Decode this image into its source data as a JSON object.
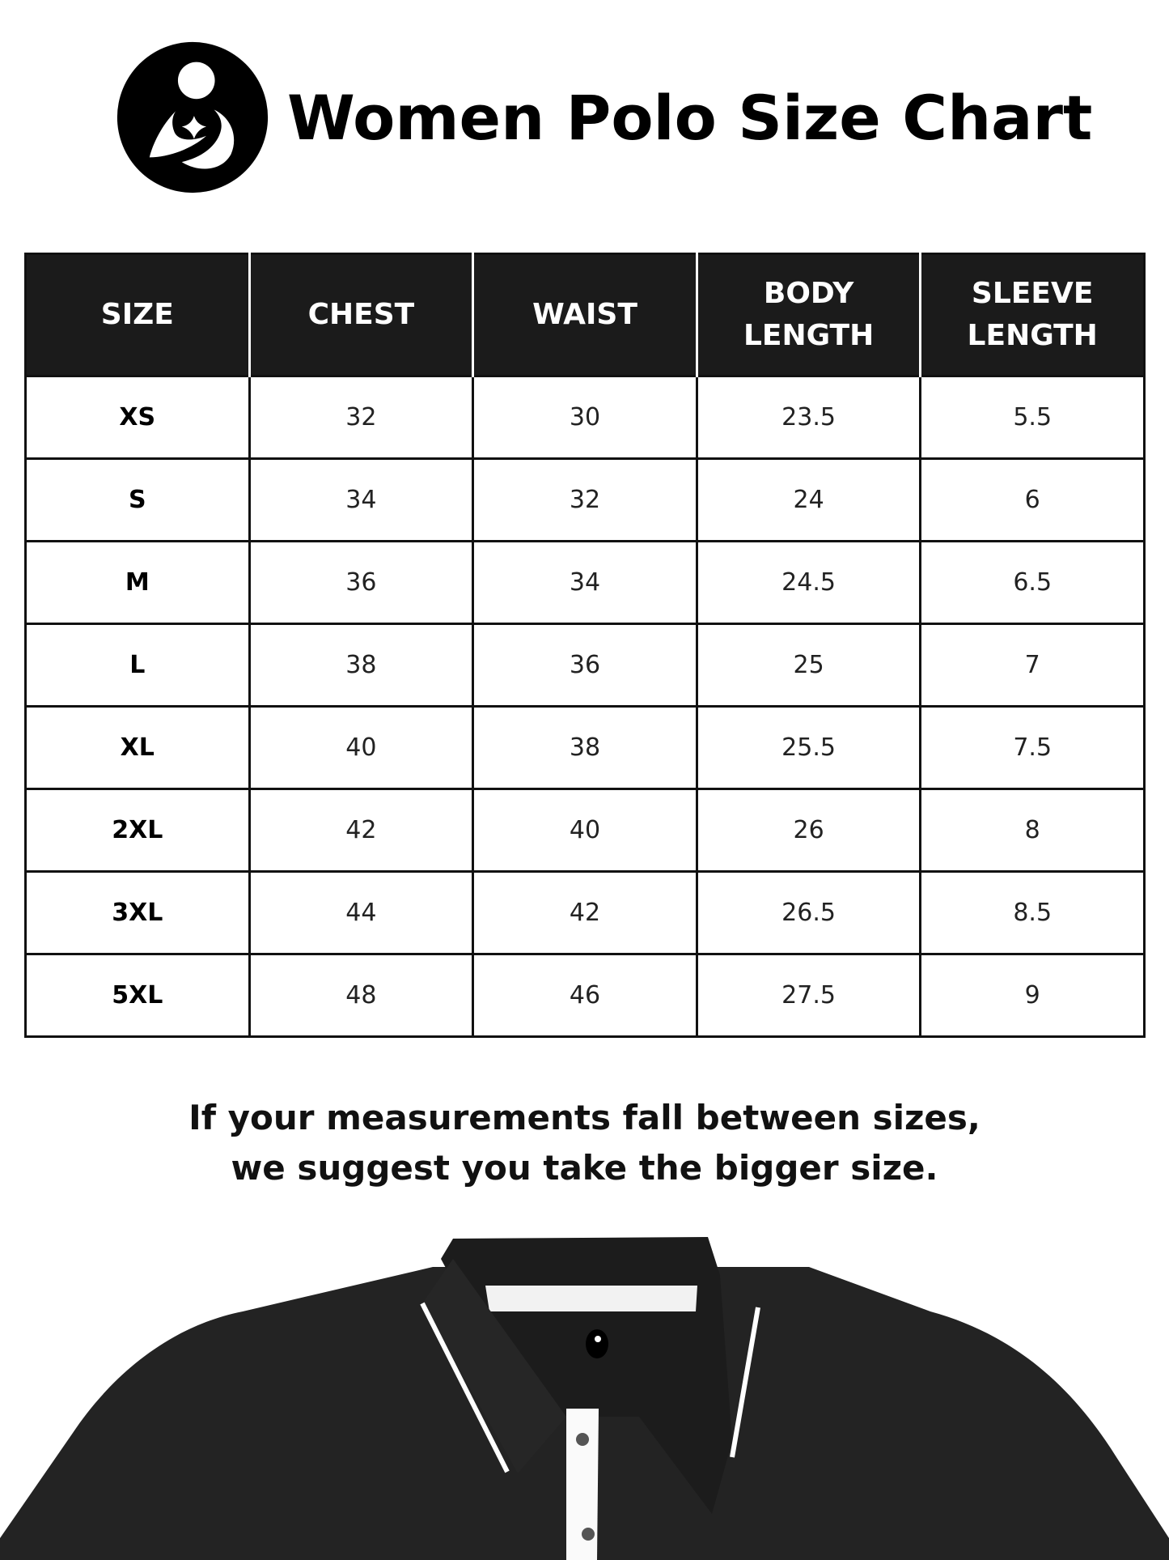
{
  "header": {
    "title": "Women Polo Size Chart",
    "logo_icon": "mother-child-logo"
  },
  "table": {
    "columns": [
      [
        "SIZE"
      ],
      [
        "CHEST"
      ],
      [
        "WAIST"
      ],
      [
        "BODY",
        "LENGTH"
      ],
      [
        "SLEEVE",
        "LENGTH"
      ]
    ],
    "rows": [
      [
        "XS",
        "32",
        "30",
        "23.5",
        "5.5"
      ],
      [
        "S",
        "34",
        "32",
        "24",
        "6"
      ],
      [
        "M",
        "36",
        "34",
        "24.5",
        "6.5"
      ],
      [
        "L",
        "38",
        "36",
        "25",
        "7"
      ],
      [
        "XL",
        "40",
        "38",
        "25.5",
        "7.5"
      ],
      [
        "2XL",
        "42",
        "40",
        "26",
        "8"
      ],
      [
        "3XL",
        "44",
        "42",
        "26.5",
        "8.5"
      ],
      [
        "5XL",
        "48",
        "46",
        "27.5",
        "9"
      ]
    ]
  },
  "note": {
    "line1": "If your measurements fall between sizes,",
    "line2": "we suggest you take the bigger size."
  },
  "colors": {
    "header_bg": "#1b1b1b",
    "shirt": "#232323"
  }
}
